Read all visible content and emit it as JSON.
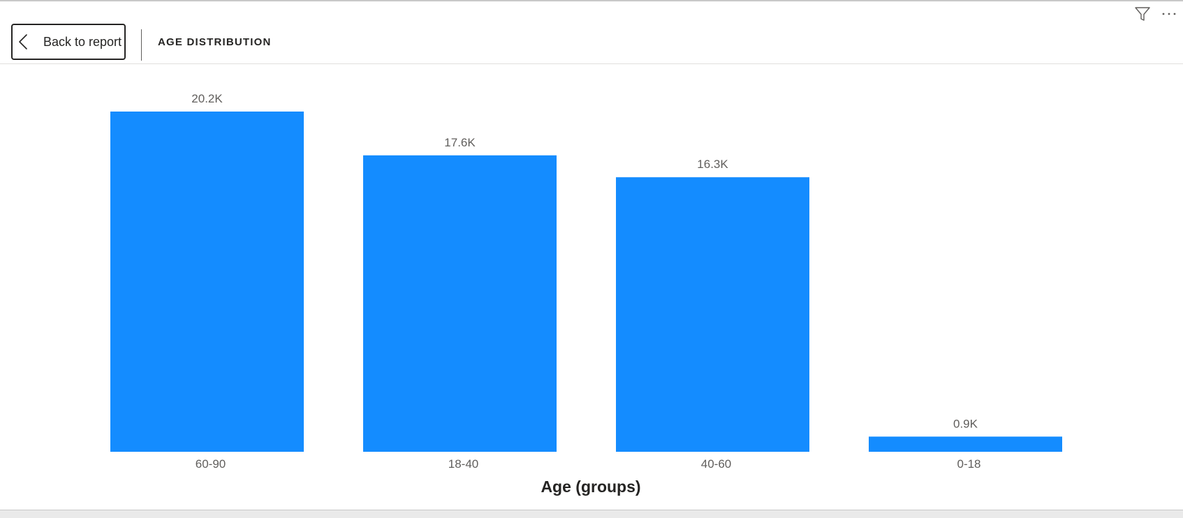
{
  "header": {
    "back_label": "Back to report",
    "section_title": "AGE DISTRIBUTION",
    "icons": [
      "chevron-left-icon",
      "filter-icon",
      "more-options-icon"
    ]
  },
  "colors": {
    "bar": "#148CFF",
    "label": "#605E5C",
    "axis_title": "#252423"
  },
  "chart_data": {
    "type": "bar",
    "categories": [
      "60-90",
      "18-40",
      "40-60",
      "0-18"
    ],
    "values": [
      20200,
      17600,
      16300,
      900
    ],
    "data_labels": [
      "20.2K",
      "17.6K",
      "16.3K",
      "0.9K"
    ],
    "xlabel": "Age (groups)",
    "ylabel": "",
    "ylim": [
      0,
      20200
    ],
    "grid": false,
    "legend": "none"
  }
}
